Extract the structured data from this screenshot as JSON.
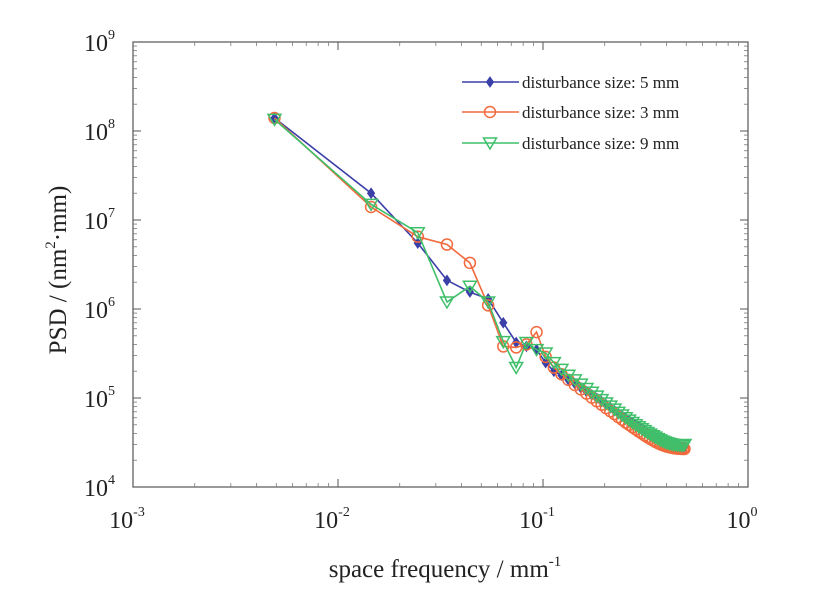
{
  "chart_data": {
    "type": "line",
    "xscale": "log",
    "yscale": "log",
    "xlim": [
      0.001,
      1
    ],
    "ylim": [
      10000,
      1000000000
    ],
    "grid": false,
    "legend_position": "top-right",
    "xlabel_text": "space frequency / mm",
    "xlabel_sup": "-1",
    "ylabel_pre": "PSD / (nm",
    "ylabel_sup": "2",
    "ylabel_post": "·mm)",
    "x_ticks": [
      {
        "base": "10",
        "exp": "-3",
        "value": 0.001
      },
      {
        "base": "10",
        "exp": "-2",
        "value": 0.01
      },
      {
        "base": "10",
        "exp": "-1",
        "value": 0.1
      },
      {
        "base": "10",
        "exp": "0",
        "value": 1
      }
    ],
    "y_ticks": [
      {
        "base": "10",
        "exp": "4",
        "value": 10000
      },
      {
        "base": "10",
        "exp": "5",
        "value": 100000
      },
      {
        "base": "10",
        "exp": "6",
        "value": 1000000
      },
      {
        "base": "10",
        "exp": "7",
        "value": 10000000
      },
      {
        "base": "10",
        "exp": "8",
        "value": 100000000
      },
      {
        "base": "10",
        "exp": "9",
        "value": 1000000000
      }
    ],
    "series": [
      {
        "name": "disturbance size: 5 mm",
        "color": "#3b3fa8",
        "marker": "diamond",
        "x": [
          0.0049,
          0.0145,
          0.0245,
          0.034,
          0.044,
          0.054,
          0.064,
          0.074,
          0.083,
          0.093,
          0.103,
          0.113,
          0.123,
          0.133,
          0.143,
          0.153,
          0.163,
          0.173,
          0.183,
          0.193,
          0.203,
          0.213,
          0.223,
          0.233,
          0.243,
          0.253,
          0.263,
          0.273,
          0.283,
          0.293,
          0.303,
          0.313,
          0.323,
          0.333,
          0.343,
          0.353,
          0.363,
          0.373,
          0.383,
          0.393,
          0.403,
          0.413,
          0.423,
          0.433,
          0.443,
          0.453,
          0.463,
          0.473,
          0.483,
          0.49
        ],
        "y": [
          140000000,
          20000000,
          5500000,
          2100000,
          1550000,
          1300000,
          700000,
          420000,
          380000,
          350000,
          250000,
          200000,
          180000,
          160000,
          145000,
          130000,
          118000,
          108000,
          99000,
          91000,
          84000,
          78000,
          72000,
          67000,
          63000,
          59000,
          55000,
          52000,
          49000,
          46500,
          44000,
          42000,
          40000,
          38500,
          37000,
          35500,
          34200,
          33000,
          32000,
          31200,
          30500,
          30000,
          29500,
          29000,
          28600,
          28300,
          28100,
          28000,
          28000,
          28000
        ]
      },
      {
        "name": "disturbance size: 3 mm",
        "color": "#f26a3d",
        "marker": "circle",
        "x": [
          0.0049,
          0.0145,
          0.0245,
          0.034,
          0.044,
          0.054,
          0.064,
          0.074,
          0.083,
          0.093,
          0.103,
          0.113,
          0.123,
          0.133,
          0.143,
          0.153,
          0.163,
          0.173,
          0.183,
          0.193,
          0.203,
          0.213,
          0.223,
          0.233,
          0.243,
          0.253,
          0.263,
          0.273,
          0.283,
          0.293,
          0.303,
          0.313,
          0.323,
          0.333,
          0.343,
          0.353,
          0.363,
          0.373,
          0.383,
          0.393,
          0.403,
          0.413,
          0.423,
          0.433,
          0.443,
          0.453,
          0.463,
          0.473,
          0.483,
          0.49
        ],
        "y": [
          140000000,
          14000000,
          6500000,
          5300000,
          3300000,
          1100000,
          380000,
          370000,
          400000,
          550000,
          290000,
          220000,
          185000,
          160000,
          140000,
          125000,
          112000,
          101000,
          92000,
          84000,
          77000,
          71000,
          66000,
          61000,
          57000,
          53000,
          50000,
          47000,
          44500,
          42000,
          40000,
          38000,
          36300,
          34800,
          33400,
          32200,
          31200,
          30300,
          29500,
          28900,
          28400,
          28000,
          27600,
          27300,
          27100,
          27000,
          26900,
          26800,
          26800,
          26800
        ]
      },
      {
        "name": "disturbance size: 9 mm",
        "color": "#3fbf6a",
        "marker": "triangle-down",
        "x": [
          0.0049,
          0.0145,
          0.0245,
          0.034,
          0.044,
          0.054,
          0.064,
          0.074,
          0.083,
          0.093,
          0.103,
          0.113,
          0.123,
          0.133,
          0.143,
          0.153,
          0.163,
          0.173,
          0.183,
          0.193,
          0.203,
          0.213,
          0.223,
          0.233,
          0.243,
          0.253,
          0.263,
          0.273,
          0.283,
          0.293,
          0.303,
          0.313,
          0.323,
          0.333,
          0.343,
          0.353,
          0.363,
          0.373,
          0.383,
          0.393,
          0.403,
          0.413,
          0.423,
          0.433,
          0.443,
          0.453,
          0.463,
          0.473,
          0.483,
          0.49
        ],
        "y": [
          135000000,
          15000000,
          7200000,
          1200000,
          1800000,
          1200000,
          430000,
          220000,
          420000,
          350000,
          320000,
          250000,
          210000,
          180000,
          160000,
          143000,
          128000,
          116000,
          105000,
          96000,
          88000,
          81000,
          75000,
          69000,
          64500,
          60000,
          56500,
          53000,
          50000,
          47500,
          45200,
          43000,
          41000,
          39300,
          37700,
          36300,
          35000,
          33800,
          32800,
          32000,
          31300,
          30800,
          30400,
          30000,
          29800,
          29600,
          29500,
          29500,
          29600,
          30000
        ]
      }
    ]
  }
}
